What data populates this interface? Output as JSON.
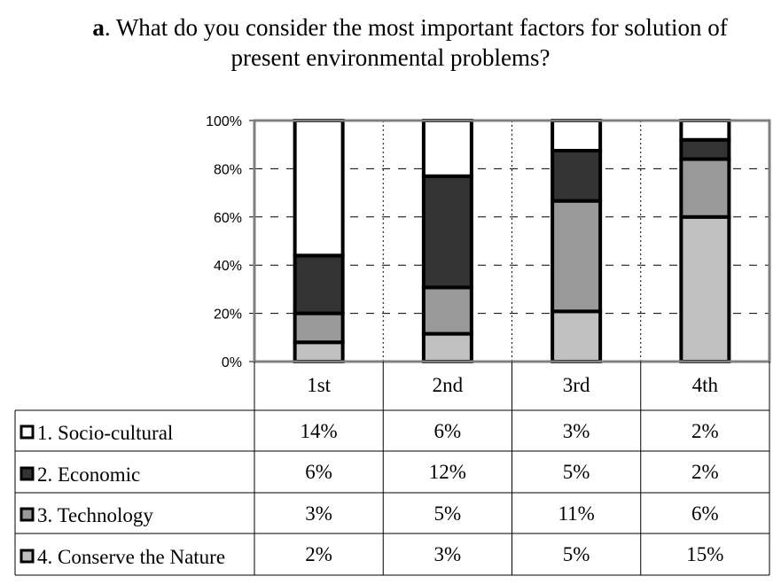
{
  "title": {
    "prefix": "a",
    "line1": ". What do you consider the most important factors for solution of",
    "line2": "present environmental problems?"
  },
  "chart_data": {
    "type": "bar",
    "stacked": true,
    "normalized": true,
    "categories": [
      "1st",
      "2nd",
      "3rd",
      "4th"
    ],
    "yticks": [
      "0%",
      "20%",
      "40%",
      "60%",
      "80%",
      "100%"
    ],
    "ylim": [
      0,
      100
    ],
    "grid": "dashed-horizontal",
    "series": [
      {
        "name": "1. Socio-cultural",
        "values": [
          "14%",
          "6%",
          "3%",
          "2%"
        ],
        "numeric": [
          14,
          6,
          3,
          2
        ],
        "color": "#ffffff"
      },
      {
        "name": "2. Economic",
        "values": [
          "6%",
          "12%",
          "5%",
          "2%"
        ],
        "numeric": [
          6,
          12,
          5,
          2
        ],
        "color": "#333333"
      },
      {
        "name": "3. Technology",
        "values": [
          "3%",
          "5%",
          "11%",
          "6%"
        ],
        "numeric": [
          3,
          5,
          11,
          6
        ],
        "color": "#999999"
      },
      {
        "name": "4. Conserve the Nature",
        "values": [
          "2%",
          "3%",
          "5%",
          "15%"
        ],
        "numeric": [
          2,
          3,
          5,
          15
        ],
        "color": "#c0c0c0"
      }
    ]
  }
}
